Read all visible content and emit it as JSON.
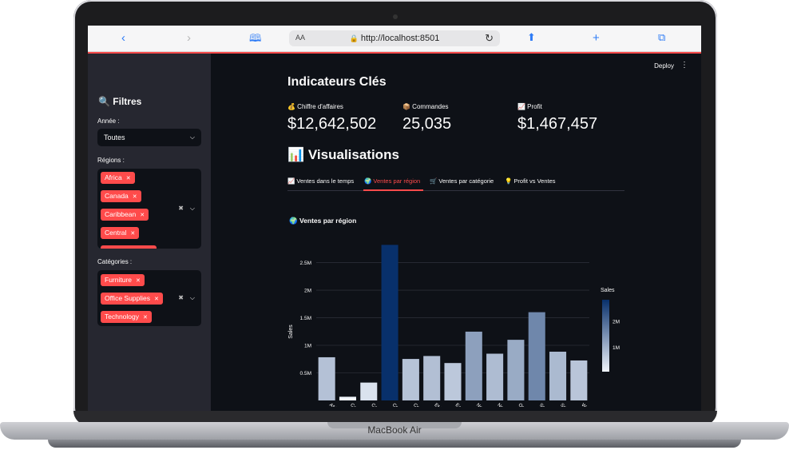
{
  "device": {
    "brand": "MacBook Air"
  },
  "browser": {
    "url": "http://localhost:8501",
    "text_size": "AA",
    "icons": [
      "back-icon",
      "forward-icon",
      "bookmarks-icon",
      "lock-icon",
      "reload-icon",
      "share-icon",
      "new-tab-icon",
      "tabs-icon"
    ]
  },
  "header": {
    "deploy_label": "Deploy",
    "menu_label": "⋮"
  },
  "sidebar": {
    "title": "🔍 Filtres",
    "year": {
      "label": "Année :",
      "value": "Toutes"
    },
    "regions": {
      "label": "Régions :",
      "tags": [
        "Africa",
        "Canada",
        "Caribbean",
        "Central"
      ]
    },
    "categories": {
      "label": "Catégories :",
      "tags": [
        "Furniture",
        "Office Supplies",
        "Technology"
      ]
    }
  },
  "kpi": {
    "heading": "Indicateurs Clés",
    "metrics": [
      {
        "label": "💰 Chiffre d'affaires",
        "value": "$12,642,502"
      },
      {
        "label": "📦 Commandes",
        "value": "25,035"
      },
      {
        "label": "📈 Profit",
        "value": "$1,467,457"
      }
    ]
  },
  "visualisations": {
    "heading": "📊 Visualisations",
    "tabs": [
      {
        "label": "📈 Ventes dans le temps"
      },
      {
        "label": "🌍 Ventes par région",
        "active": true
      },
      {
        "label": "🛒 Ventes par catégorie"
      },
      {
        "label": "💡 Profit vs Ventes"
      }
    ]
  },
  "chart_data": {
    "type": "bar",
    "title": "🌍 Ventes par région",
    "xlabel": "",
    "ylabel": "Sales",
    "categories": [
      "Africa",
      "Canada",
      "Caribbean",
      "Central",
      "Central Asia",
      "EMEA",
      "East",
      "North",
      "North Asia",
      "Oceania",
      "South",
      "Southeast Asia",
      "West"
    ],
    "values": [
      783773,
      66928,
      324281,
      2822303,
      752827,
      806162,
      678781,
      1248166,
      848310,
      1100185,
      1600907,
      884423,
      725458
    ],
    "ylim": [
      0,
      2900000
    ],
    "yticks": [
      "0.5M",
      "1M",
      "1.5M",
      "2M",
      "2.5M"
    ],
    "ytick_values": [
      500000,
      1000000,
      1500000,
      2000000,
      2500000
    ],
    "colorbar": {
      "title": "Sales",
      "ticks": [
        "2M",
        "1M"
      ],
      "tick_values": [
        2000000,
        1000000
      ],
      "range": [
        66928,
        2822303
      ]
    },
    "color_scale": [
      "#f0f4fb",
      "#08306b"
    ],
    "grid": true
  }
}
